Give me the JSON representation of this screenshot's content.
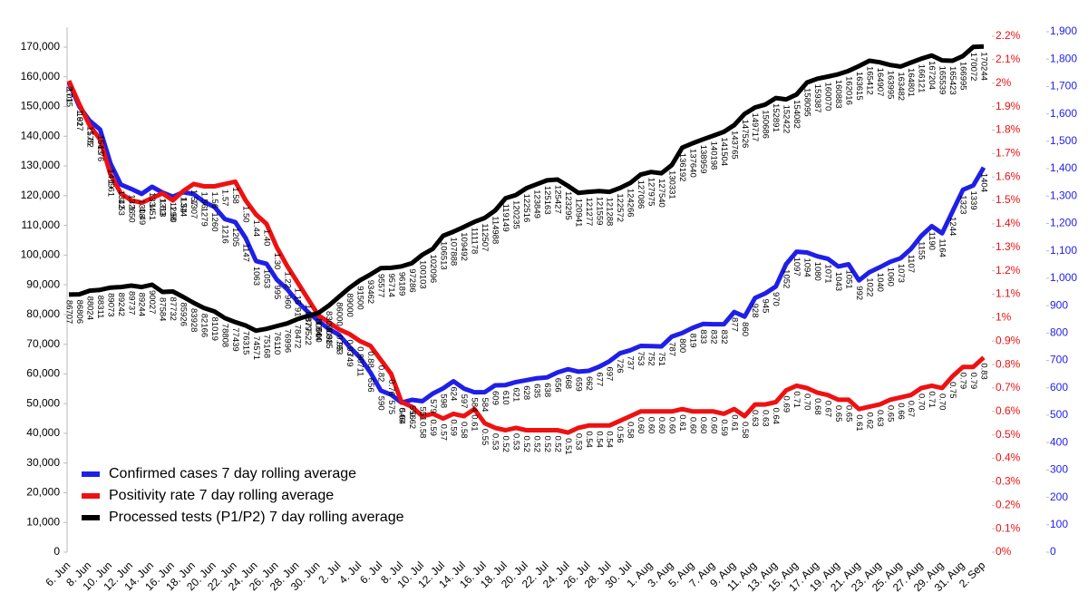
{
  "chart_data": {
    "type": "line",
    "categories": [
      "6. Jun",
      null,
      "8. Jun",
      null,
      "10. Jun",
      null,
      "12. Jun",
      null,
      "14. Jun",
      null,
      "16. Jun",
      null,
      "18. Jun",
      null,
      "20. Jun",
      null,
      "22. Jun",
      null,
      "24. Jun",
      null,
      "26. Jun",
      null,
      "28. Jun",
      null,
      "30. Jun",
      null,
      "2. Jul",
      null,
      "4. Jul",
      null,
      "6. Jul",
      null,
      "8. Jul",
      null,
      "10. Jul",
      null,
      "12. Jul",
      null,
      "14. Jul",
      null,
      "16. Jul",
      null,
      "18. Jul",
      null,
      "20. Jul",
      null,
      "22. Jul",
      null,
      "24. Jul",
      null,
      "26. Jul",
      null,
      "28. Jul",
      null,
      "30. Jul",
      null,
      "1. Aug",
      null,
      "3. Aug",
      null,
      "5. Aug",
      null,
      "7. Aug",
      null,
      "9. Aug",
      null,
      "11. Aug",
      null,
      "13. Aug",
      null,
      "15. Aug",
      null,
      "17. Aug",
      null,
      "19. Aug",
      null,
      "21. Aug",
      null,
      "23. Aug",
      null,
      "25. Aug",
      null,
      "27. Aug",
      null,
      "29. Aug",
      null,
      "31. Aug",
      null,
      "2. Sep"
    ],
    "series": [
      {
        "name": "Confirmed cases 7 day rolling average",
        "color": "#1f1fe8",
        "axis": "y3",
        "values": [
          1715,
          1627,
          1575,
          1543,
          1419,
          1342,
          1326,
          1308,
          1334,
          1313,
          1298,
          1314,
          1307,
          1279,
          1260,
          1216,
          1205,
          1147,
          1063,
          1053,
          995,
          960,
          914,
          877,
          844,
          815,
          793,
          749,
          711,
          656,
          590,
          575,
          546,
          556,
          551,
          579,
          598,
          624,
          597,
          584,
          584,
          609,
          610,
          621,
          628,
          635,
          638,
          656,
          668,
          659,
          662,
          677,
          697,
          726,
          737,
          753,
          752,
          751,
          787,
          800,
          819,
          833,
          832,
          832,
          877,
          860,
          928,
          945,
          970,
          1052,
          1097,
          1094,
          1080,
          1071,
          1043,
          1051,
          992,
          1022,
          1040,
          1060,
          1073,
          1107,
          1155,
          1190,
          1164,
          1244,
          1323,
          1339,
          1404
        ]
      },
      {
        "name": "Positivity rate 7 day rolling average",
        "color": "#ee1111",
        "axis": "y2",
        "values": [
          2.01,
          1.91,
          1.82,
          1.76,
          1.61,
          1.53,
          1.5,
          1.49,
          1.51,
          1.53,
          1.5,
          1.54,
          1.57,
          1.56,
          1.56,
          1.57,
          1.58,
          1.5,
          1.44,
          1.4,
          1.3,
          1.22,
          1.15,
          1.08,
          1.01,
          0.98,
          0.95,
          0.93,
          0.9,
          0.88,
          0.82,
          0.76,
          0.64,
          0.62,
          0.58,
          0.59,
          0.57,
          0.59,
          0.58,
          0.61,
          0.55,
          0.53,
          0.52,
          0.53,
          0.52,
          0.52,
          0.52,
          0.52,
          0.51,
          0.53,
          0.54,
          0.54,
          0.54,
          0.56,
          0.58,
          0.6,
          0.6,
          0.6,
          0.6,
          0.61,
          0.6,
          0.6,
          0.6,
          0.59,
          0.61,
          0.58,
          0.63,
          0.63,
          0.64,
          0.69,
          0.71,
          0.7,
          0.68,
          0.67,
          0.65,
          0.65,
          0.61,
          0.62,
          0.63,
          0.65,
          0.66,
          0.67,
          0.7,
          0.71,
          0.7,
          0.75,
          0.79,
          0.79,
          0.83
        ],
        "value_labels": [
          "2.01",
          "1.91",
          "1.82",
          "1.76",
          "1.61",
          "1.53",
          "1.50",
          "1.49",
          "1.51",
          "1.53",
          "1.50",
          "1.54",
          "1.57",
          "1.56",
          "1.56",
          "1.57",
          "1.58",
          "1.50",
          "1.44",
          "1.40",
          "1.30",
          "1.22",
          "1.15",
          "1.08",
          "1.01",
          "0.98",
          "0.95",
          "0.93",
          "0.90",
          "0.88",
          "0.82",
          "0.76",
          "0.64",
          "0.62",
          "0.58",
          "0.59",
          "0.57",
          "0.59",
          "0.58",
          "0.61",
          "0.55",
          "0.53",
          "0.52",
          "0.53",
          "0.52",
          "0.52",
          "0.52",
          "0.52",
          "0.51",
          "0.53",
          "0.54",
          "0.54",
          "0.54",
          "0.56",
          "0.58",
          "0.60",
          "0.60",
          "0.60",
          "0.60",
          "0.61",
          "0.60",
          "0.60",
          "0.60",
          "0.59",
          "0.61",
          "0.58",
          "0.63",
          "0.63",
          "0.64",
          "0.69",
          "0.71",
          "0.70",
          "0.68",
          "0.67",
          "0.65",
          "0.65",
          "0.61",
          "0.62",
          "0.63",
          "0.65",
          "0.66",
          "0.67",
          "0.70",
          "0.71",
          "0.70",
          "0.75",
          "0.79",
          "0.79",
          "0.83"
        ]
      },
      {
        "name": "Processed tests (P1/P2) 7 day rolling average",
        "color": "#000000",
        "axis": "y",
        "values": [
          86707,
          86806,
          88024,
          88311,
          89073,
          89242,
          89737,
          89244,
          90027,
          87584,
          87732,
          85926,
          83928,
          82166,
          81019,
          78808,
          77439,
          76315,
          74571,
          75168,
          76110,
          76996,
          78472,
          79522,
          80500,
          83000,
          86000,
          89000,
          91500,
          93462,
          95577,
          95714,
          96189,
          97286,
          100103,
          102096,
          106513,
          107888,
          109492,
          111178,
          112507,
          114988,
          119149,
          120235,
          122516,
          123849,
          125163,
          125427,
          123295,
          120941,
          121277,
          121559,
          121288,
          122572,
          124266,
          127086,
          127975,
          127540,
          130331,
          136192,
          137640,
          138959,
          140198,
          141504,
          143765,
          147526,
          149717,
          150686,
          152891,
          152422,
          154082,
          158095,
          159387,
          160070,
          160883,
          162016,
          163615,
          165412,
          164907,
          163995,
          163482,
          164801,
          166121,
          167204,
          165539,
          165423,
          166995,
          170072,
          170244
        ]
      }
    ],
    "ylim": [
      0,
      170000
    ],
    "yticks": [
      0,
      {
        "value": 10000,
        "label": "10,000"
      },
      {
        "value": 20000,
        "label": "20,000"
      },
      {
        "value": 30000,
        "label": "30,000"
      },
      {
        "value": 40000,
        "label": "40,000"
      },
      {
        "value": 50000,
        "label": "50,000"
      },
      {
        "value": 60000,
        "label": "60,000"
      },
      {
        "value": 70000,
        "label": "70,000"
      },
      {
        "value": 80000,
        "label": "80,000"
      },
      {
        "value": 90000,
        "label": "90,000"
      },
      {
        "value": 100000,
        "label": "100,000"
      },
      {
        "value": 110000,
        "label": "110,000"
      },
      {
        "value": 120000,
        "label": "120,000"
      },
      {
        "value": 130000,
        "label": "130,000"
      },
      {
        "value": 140000,
        "label": "140,000"
      },
      {
        "value": 150000,
        "label": "150,000"
      },
      {
        "value": 160000,
        "label": "160,000"
      },
      {
        "value": 170000,
        "label": "170,000"
      }
    ],
    "y2lim": [
      0,
      2.2
    ],
    "y2ticks": [
      {
        "value": 0,
        "label": "0%"
      },
      {
        "value": 0.1,
        "label": "0.1%"
      },
      {
        "value": 0.2,
        "label": "0.2%"
      },
      {
        "value": 0.3,
        "label": "0.3%"
      },
      {
        "value": 0.4,
        "label": "0.4%"
      },
      {
        "value": 0.5,
        "label": "0.5%"
      },
      {
        "value": 0.6,
        "label": "0.6%"
      },
      {
        "value": 0.7,
        "label": "0.7%"
      },
      {
        "value": 0.8,
        "label": "0.8%"
      },
      {
        "value": 0.9,
        "label": "0.9%"
      },
      {
        "value": 1,
        "label": "1%"
      },
      {
        "value": 1.1,
        "label": "1.1%"
      },
      {
        "value": 1.2,
        "label": "1.2%"
      },
      {
        "value": 1.3,
        "label": "1.3%"
      },
      {
        "value": 1.4,
        "label": "1.4%"
      },
      {
        "value": 1.5,
        "label": "1.5%"
      },
      {
        "value": 1.6,
        "label": "1.6%"
      },
      {
        "value": 1.7,
        "label": "1.7%"
      },
      {
        "value": 1.8,
        "label": "1.8%"
      },
      {
        "value": 1.9,
        "label": "1.9%"
      },
      {
        "value": 2,
        "label": "2%"
      },
      {
        "value": 2.1,
        "label": "2.1%"
      },
      {
        "value": 2.2,
        "label": "2.2%"
      }
    ],
    "y3lim": [
      0,
      1900
    ],
    "y3ticks": [
      0,
      100,
      200,
      300,
      400,
      500,
      600,
      700,
      800,
      900,
      {
        "value": 1000,
        "label": "1,000"
      },
      {
        "value": 1100,
        "label": "1,100"
      },
      {
        "value": 1200,
        "label": "1,200"
      },
      {
        "value": 1300,
        "label": "1,300"
      },
      {
        "value": 1400,
        "label": "1,400"
      },
      {
        "value": 1500,
        "label": "1,500"
      },
      {
        "value": 1600,
        "label": "1,600"
      },
      {
        "value": 1700,
        "label": "1,700"
      },
      {
        "value": 1800,
        "label": "1,800"
      },
      {
        "value": 1900,
        "label": "1,900"
      }
    ],
    "legend": "lower-left"
  }
}
